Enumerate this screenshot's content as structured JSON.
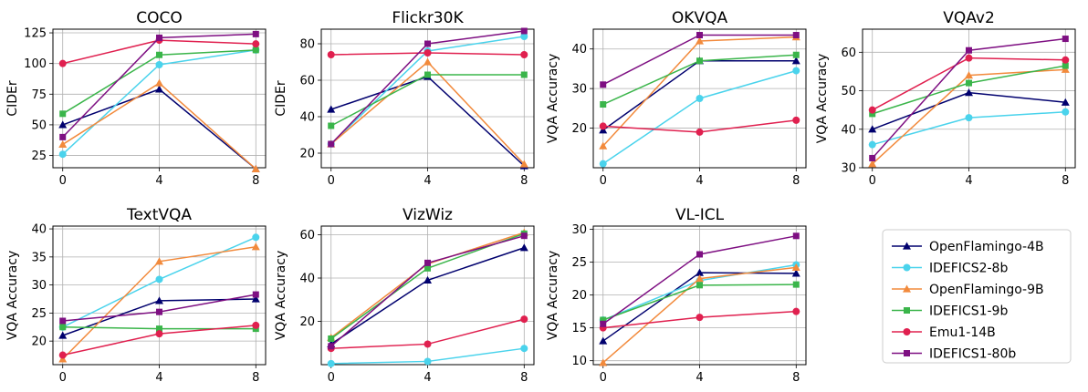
{
  "chart_data": {
    "type": "line",
    "legend_position": "lower-right",
    "grid": true,
    "series": [
      {
        "name": "OpenFlamingo-4B",
        "color": "#00006e",
        "marker": "triangle"
      },
      {
        "name": "IDEFICS2-8b",
        "color": "#4ad3ec",
        "marker": "circle"
      },
      {
        "name": "OpenFlamingo-9B",
        "color": "#f28a3c",
        "marker": "triangle"
      },
      {
        "name": "IDEFICS1-9b",
        "color": "#3ab54a",
        "marker": "square"
      },
      {
        "name": "Emu1-14B",
        "color": "#e0204f",
        "marker": "circle"
      },
      {
        "name": "IDEFICS1-80b",
        "color": "#7e0f82",
        "marker": "square"
      }
    ],
    "panels": [
      {
        "title": "COCO",
        "ylabel": "CIDEr",
        "x": [
          0,
          4,
          8
        ],
        "ylim": [
          15,
          128
        ],
        "yticks": [
          25,
          50,
          75,
          100,
          125
        ],
        "ytick_labels": [
          "25",
          "50",
          "75",
          "100",
          "125"
        ],
        "values": [
          [
            50,
            79,
            14
          ],
          [
            26,
            99,
            111
          ],
          [
            34,
            84,
            14
          ],
          [
            59,
            107,
            111
          ],
          [
            100,
            119,
            116
          ],
          [
            40,
            121,
            124
          ]
        ]
      },
      {
        "title": "Flickr30K",
        "ylabel": "CIDEr",
        "x": [
          0,
          4,
          8
        ],
        "ylim": [
          12,
          88
        ],
        "yticks": [
          20,
          40,
          60,
          80
        ],
        "ytick_labels": [
          "20",
          "40",
          "60",
          "80"
        ],
        "values": [
          [
            44,
            62,
            13
          ],
          [
            25,
            76,
            84
          ],
          [
            25,
            70,
            14
          ],
          [
            35,
            63,
            63
          ],
          [
            74,
            75,
            74
          ],
          [
            25,
            80,
            87
          ]
        ]
      },
      {
        "title": "OKVQA",
        "ylabel": "VQA Accuracy",
        "x": [
          0,
          4,
          8
        ],
        "ylim": [
          10,
          45
        ],
        "yticks": [
          20,
          30,
          40
        ],
        "ytick_labels": [
          "20",
          "30",
          "40"
        ],
        "values": [
          [
            19.5,
            37,
            37
          ],
          [
            11,
            27.5,
            34.5
          ],
          [
            15.5,
            42,
            43
          ],
          [
            26,
            37,
            38.5
          ],
          [
            20.5,
            19,
            22
          ],
          [
            31,
            43.5,
            43.5
          ]
        ]
      },
      {
        "title": "VQAv2",
        "ylabel": "VQA Accuracy",
        "x": [
          0,
          4,
          8
        ],
        "ylim": [
          30,
          66
        ],
        "yticks": [
          30,
          40,
          50,
          60
        ],
        "ytick_labels": [
          "30",
          "40",
          "50",
          "60"
        ],
        "values": [
          [
            40,
            49.5,
            47
          ],
          [
            36,
            43,
            44.5
          ],
          [
            31,
            54,
            55.5
          ],
          [
            44,
            52,
            56.5
          ],
          [
            45,
            58.5,
            58
          ],
          [
            32.5,
            60.5,
            63.5
          ]
        ]
      },
      {
        "title": "TextVQA",
        "ylabel": "VQA Accuracy",
        "x": [
          0,
          4,
          8
        ],
        "ylim": [
          15.8,
          40.5
        ],
        "yticks": [
          20,
          25,
          30,
          35,
          40
        ],
        "ytick_labels": [
          "20",
          "25",
          "30",
          "35",
          "40"
        ],
        "values": [
          [
            21,
            27.2,
            27.5
          ],
          [
            22.5,
            31,
            38.5
          ],
          [
            16.8,
            34.2,
            36.8
          ],
          [
            22.5,
            22.2,
            22.2
          ],
          [
            17.5,
            21.3,
            22.8
          ],
          [
            23.6,
            25.2,
            28.3
          ]
        ]
      },
      {
        "title": "VizWiz",
        "ylabel": "VQA Accuracy",
        "x": [
          0,
          4,
          8
        ],
        "ylim": [
          0,
          64
        ],
        "yticks": [
          20,
          40,
          60
        ],
        "ytick_labels": [
          "20",
          "40",
          "60"
        ],
        "values": [
          [
            9.5,
            39,
            54
          ],
          [
            0.5,
            1.5,
            7.5
          ],
          [
            12.5,
            46.5,
            61
          ],
          [
            12,
            44.5,
            60.5
          ],
          [
            7.5,
            9.5,
            21
          ],
          [
            8.5,
            47,
            59.5
          ]
        ]
      },
      {
        "title": "VL-ICL",
        "ylabel": "VQA Accuracy",
        "x": [
          0,
          4,
          8
        ],
        "ylim": [
          9.4,
          30.5
        ],
        "yticks": [
          10,
          15,
          20,
          25,
          30
        ],
        "ytick_labels": [
          "10",
          "15",
          "20",
          "25",
          "30"
        ],
        "values": [
          [
            13,
            23.4,
            23.3
          ],
          [
            16.2,
            22.2,
            24.6
          ],
          [
            9.7,
            22.5,
            24.2
          ],
          [
            16.2,
            21.5,
            21.6
          ],
          [
            15,
            16.6,
            17.5
          ],
          [
            15.6,
            26.2,
            29
          ]
        ]
      }
    ]
  }
}
